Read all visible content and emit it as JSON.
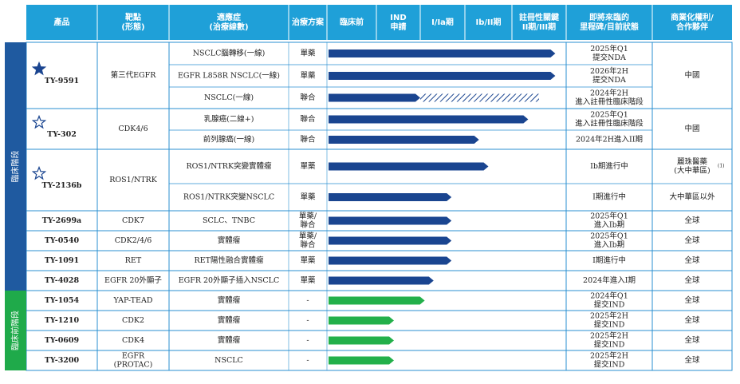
{
  "header": {
    "product": "產品",
    "target": [
      "靶點",
      "(形態)"
    ],
    "indication": [
      "適應症",
      "(治療線數)"
    ],
    "regimen": "治療方案",
    "preclinical": "臨床前",
    "ind": [
      "IND",
      "申請"
    ],
    "phase1": "I/Ia期",
    "phase2": "Ib/II期",
    "pivotal": [
      "註冊性關鍵",
      "II期/III期"
    ],
    "milestone": [
      "即將來臨的",
      "里程碑/目前狀態"
    ],
    "partner": [
      "商業化權利/",
      "合作夥伴"
    ]
  },
  "sections": [
    {
      "label": "臨床階段",
      "color": "#1f5aa0"
    },
    {
      "label": "臨床前階段",
      "color": "#1faa4a"
    }
  ],
  "colors": {
    "header_bg": "#1fa0d8",
    "clinical_bar": "#1a4590",
    "preclinical_bar": "#23b04a",
    "hatch": "#1a4590",
    "row_border": "#2a8fd0",
    "star": "#1a4590"
  },
  "chart_data": {
    "type": "bar",
    "stages": [
      "臨床前",
      "IND申請",
      "I/Ia期",
      "Ib/II期",
      "註冊性關鍵II期/III期"
    ],
    "products": [
      {
        "name": "TY-9591",
        "star": "filled",
        "target": "第三代EGFR",
        "partner": "中國",
        "rows": [
          {
            "indication": "NSCLC腦轉移(一線)",
            "regimen": "單藥",
            "progress": 4.8,
            "milestone": [
              "2025年Q1",
              "提交NDA"
            ]
          },
          {
            "indication": "EGFR L858R NSCLC(一線)",
            "regimen": "單藥",
            "progress": 4.8,
            "milestone": [
              "2026年2H",
              "提交NDA"
            ]
          },
          {
            "indication": "NSCLC(一線)",
            "regimen": "聯合",
            "progress": 2.0,
            "planned": 4.5,
            "milestone": [
              "2024年2H",
              "進入註冊性臨床階段"
            ]
          }
        ]
      },
      {
        "name": "TY-302",
        "star": "outline",
        "target": "CDK4/6",
        "partner": "中國",
        "rows": [
          {
            "indication": "乳腺癌(二線+)",
            "regimen": "聯合",
            "progress": 4.3,
            "milestone": [
              "2025年Q1",
              "進入註冊性臨床階段"
            ]
          },
          {
            "indication": "前列腺癌(一線)",
            "regimen": "聯合",
            "progress": 3.3,
            "milestone": [
              "2024年2H進入II期"
            ]
          }
        ]
      },
      {
        "name": "TY-2136b",
        "star": "outline",
        "target": "ROS1/NTRK",
        "rows": [
          {
            "indication": "ROS1/NTRK突變實體瘤",
            "regimen": "單藥",
            "progress": 3.5,
            "milestone": [
              "Ib期進行中"
            ],
            "partner": [
              "麗珠醫藥",
              "(大中華區)",
              "(1)"
            ]
          },
          {
            "indication": "ROS1/NTRK突變NSCLC",
            "regimen": "單藥",
            "progress": 2.7,
            "milestone": [
              "I期進行中"
            ],
            "partner": [
              "大中華區以外"
            ]
          }
        ]
      },
      {
        "name": "TY-2699a",
        "target": "CDK7",
        "partner": "全球",
        "rows": [
          {
            "indication": "SCLC、TNBC",
            "regimen": "單藥/聯合",
            "progress": 2.7,
            "milestone": [
              "2025年Q1",
              "進入Ib期"
            ]
          }
        ]
      },
      {
        "name": "TY-0540",
        "target": "CDK2/4/6",
        "partner": "全球",
        "rows": [
          {
            "indication": "實體瘤",
            "regimen": "單藥/聯合",
            "progress": 2.7,
            "milestone": [
              "2025年Q1",
              "進入Ib期"
            ]
          }
        ]
      },
      {
        "name": "TY-1091",
        "target": "RET",
        "partner": "全球",
        "rows": [
          {
            "indication": "RET陽性融合實體瘤",
            "regimen": "單藥",
            "progress": 2.7,
            "milestone": [
              "I期進行中"
            ]
          }
        ]
      },
      {
        "name": "TY-4028",
        "target": "EGFR 20外顯子",
        "partner": "全球",
        "rows": [
          {
            "indication": "EGFR 20外顯子插入NSCLC",
            "regimen": "單藥",
            "progress": 2.3,
            "milestone": [
              "2024年進入I期"
            ]
          }
        ]
      },
      {
        "name": "TY-1054",
        "target": "YAP-TEAD",
        "partner": "全球",
        "section": 1,
        "rows": [
          {
            "indication": "實體瘤",
            "regimen": "-",
            "progress": 2.1,
            "milestone": [
              "2024年Q1",
              "提交IND"
            ]
          }
        ]
      },
      {
        "name": "TY-1210",
        "target": "CDK2",
        "partner": "全球",
        "section": 1,
        "rows": [
          {
            "indication": "實體瘤",
            "regimen": "-",
            "progress": 1.4,
            "milestone": [
              "2025年2H",
              "提交IND"
            ]
          }
        ]
      },
      {
        "name": "TY-0609",
        "target": "CDK4",
        "partner": "全球",
        "section": 1,
        "rows": [
          {
            "indication": "實體瘤",
            "regimen": "-",
            "progress": 1.4,
            "milestone": [
              "2025年2H",
              "提交IND"
            ]
          }
        ]
      },
      {
        "name": "TY-3200",
        "target": "EGFR (PROTAC)",
        "partner": "全球",
        "section": 1,
        "rows": [
          {
            "indication": "NSCLC",
            "regimen": "-",
            "progress": 1.4,
            "milestone": [
              "2025年2H",
              "提交IND"
            ]
          }
        ]
      }
    ]
  }
}
